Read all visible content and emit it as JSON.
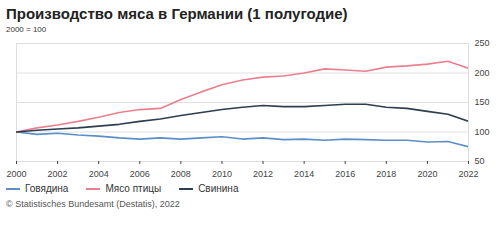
{
  "chart_data": {
    "type": "line",
    "title": "Производство мяса в Германии (1 полугодие)",
    "subtitle": "2000 = 100",
    "caption": "© Statistisches Bundesamt (Destatis), 2022",
    "x": [
      2000,
      2001,
      2002,
      2003,
      2004,
      2005,
      2006,
      2007,
      2008,
      2009,
      2010,
      2011,
      2012,
      2013,
      2014,
      2015,
      2016,
      2017,
      2018,
      2019,
      2020,
      2021,
      2022
    ],
    "series": [
      {
        "name": "Говядина",
        "color": "#5b8fc7",
        "values": [
          100,
          96,
          98,
          95,
          93,
          90,
          88,
          90,
          88,
          90,
          92,
          88,
          90,
          87,
          88,
          86,
          88,
          87,
          86,
          86,
          83,
          84,
          75
        ]
      },
      {
        "name": "Мясо птицы",
        "color": "#e8808f",
        "values": [
          100,
          107,
          112,
          118,
          125,
          133,
          138,
          140,
          155,
          168,
          180,
          188,
          193,
          195,
          200,
          207,
          205,
          203,
          210,
          212,
          215,
          220,
          208
        ]
      },
      {
        "name": "Свинина",
        "color": "#2d3e50",
        "values": [
          100,
          103,
          105,
          107,
          110,
          113,
          118,
          122,
          128,
          133,
          138,
          142,
          145,
          143,
          143,
          145,
          147,
          147,
          142,
          140,
          135,
          130,
          118
        ]
      }
    ],
    "xlim": [
      2000,
      2022
    ],
    "xticks": [
      2000,
      2002,
      2004,
      2006,
      2008,
      2010,
      2012,
      2014,
      2016,
      2018,
      2020,
      2022
    ],
    "ylim": [
      50,
      250
    ],
    "yticks": [
      50,
      100,
      150,
      200,
      250
    ],
    "grid": true,
    "legend": "bottom"
  }
}
